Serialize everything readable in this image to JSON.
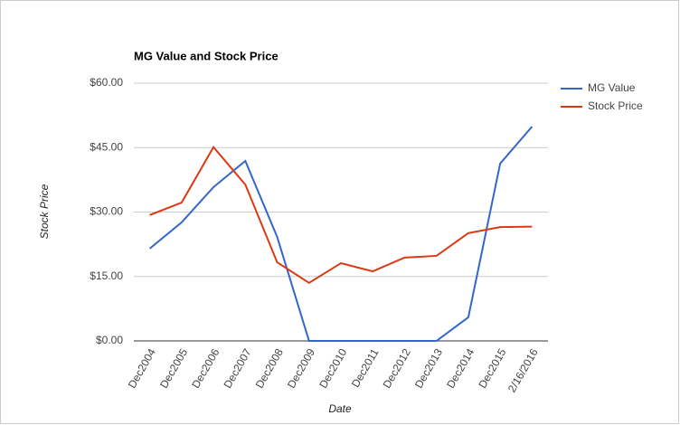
{
  "chart_data": {
    "type": "line",
    "title": "MG Value and Stock Price",
    "x_label": "Date",
    "y_label": "Stock Price",
    "categories": [
      "Dec2004",
      "Dec2005",
      "Dec2006",
      "Dec2007",
      "Dec2008",
      "Dec2009",
      "Dec2010",
      "Dec2011",
      "Dec2012",
      "Dec2013",
      "Dec2014",
      "Dec2015",
      "2/16/2016"
    ],
    "series": [
      {
        "name": "MG Value",
        "color": "#3366cc",
        "values": [
          21.5,
          27.6,
          35.8,
          41.9,
          24.2,
          0,
          0,
          0,
          0,
          0,
          5.5,
          41.3,
          49.9
        ]
      },
      {
        "name": "Stock Price",
        "color": "#dc3912",
        "values": [
          29.3,
          32.2,
          45.1,
          36.4,
          18.3,
          13.5,
          18.1,
          16.2,
          19.4,
          19.8,
          25.1,
          26.5,
          26.6
        ]
      }
    ],
    "ylim": [
      0,
      60
    ],
    "yticks": [
      {
        "value": 0,
        "label": "$0.00"
      },
      {
        "value": 15,
        "label": "$15.00"
      },
      {
        "value": 30,
        "label": "$30.00"
      },
      {
        "value": 45,
        "label": "$45.00"
      },
      {
        "value": 60,
        "label": "$60.00"
      }
    ],
    "grid": true,
    "legend": "right"
  }
}
